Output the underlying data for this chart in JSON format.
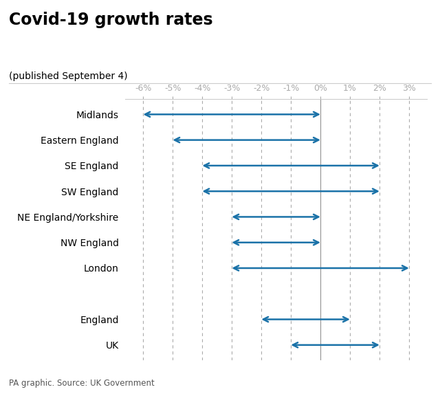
{
  "title": "Covid-19 growth rates",
  "subtitle": "(published September 4)",
  "source": "PA graphic. Source: UK Government",
  "xlim": [
    -6.6,
    3.6
  ],
  "xticks": [
    -6,
    -5,
    -4,
    -3,
    -2,
    -1,
    0,
    1,
    2,
    3
  ],
  "xtick_labels": [
    "-6%",
    "-5%",
    "-4%",
    "-3%",
    "-2%",
    "-1%",
    "0%",
    "1%",
    "2%",
    "3%"
  ],
  "regions": [
    "Midlands",
    "Eastern England",
    "SE England",
    "SW England",
    "NE England/Yorkshire",
    "NW England",
    "London",
    "",
    "England",
    "UK"
  ],
  "ranges": [
    [
      -6,
      0
    ],
    [
      -5,
      0
    ],
    [
      -4,
      2
    ],
    [
      -4,
      2
    ],
    [
      -3,
      0
    ],
    [
      -3,
      0
    ],
    [
      -3,
      3
    ],
    [
      null,
      null
    ],
    [
      -2,
      1
    ],
    [
      -1,
      2
    ]
  ],
  "arrow_color": "#1a72a8",
  "zero_line_color": "#999999",
  "grid_color": "#aaaaaa",
  "tick_color": "#aaaaaa",
  "title_fontsize": 17,
  "subtitle_fontsize": 10,
  "label_fontsize": 10,
  "tick_fontsize": 9,
  "source_fontsize": 8.5,
  "background_color": "#ffffff"
}
